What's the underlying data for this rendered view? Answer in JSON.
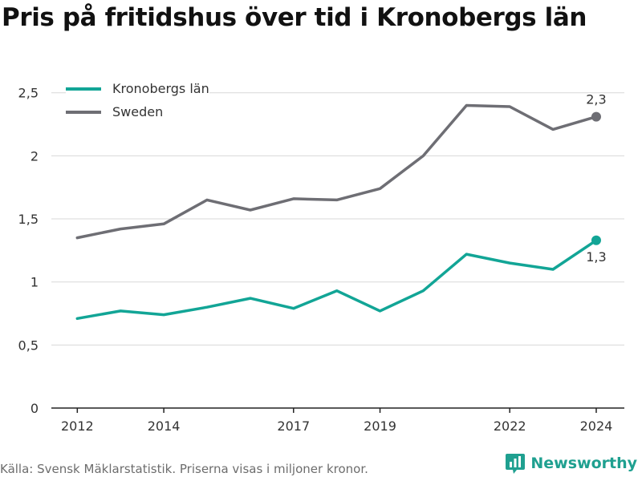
{
  "title": "Pris på fritidshus över tid i Kronobergs län",
  "footer": "Källa: Svensk Mäklarstatistik. Priserna visas i miljoner kronor.",
  "brand": {
    "name": "Newsworthy",
    "icon": "newsworthy-logo-icon",
    "color": "#1fa090"
  },
  "chart_data": {
    "type": "line",
    "x": [
      2012,
      2013,
      2014,
      2015,
      2016,
      2017,
      2018,
      2019,
      2020,
      2021,
      2022,
      2023,
      2024
    ],
    "x_ticks": [
      "2012",
      "2014",
      "2017",
      "2019",
      "2022",
      "2024"
    ],
    "y_ticks": [
      "0",
      "0,5",
      "1",
      "1,5",
      "2",
      "2,5"
    ],
    "ylim": [
      0,
      2.6
    ],
    "grid": "horizontal",
    "legend_position": "top-left",
    "series": [
      {
        "name": "Kronobergs län",
        "color": "#12a596",
        "values": [
          0.71,
          0.77,
          0.74,
          0.8,
          0.87,
          0.79,
          0.93,
          0.77,
          0.93,
          1.22,
          1.15,
          1.1,
          1.33
        ],
        "end_label": "1,3"
      },
      {
        "name": "Sweden",
        "color": "#6e6e74",
        "values": [
          1.35,
          1.42,
          1.46,
          1.65,
          1.57,
          1.66,
          1.65,
          1.74,
          2.0,
          2.4,
          2.39,
          2.21,
          2.31
        ],
        "end_label": "2,3"
      }
    ]
  }
}
